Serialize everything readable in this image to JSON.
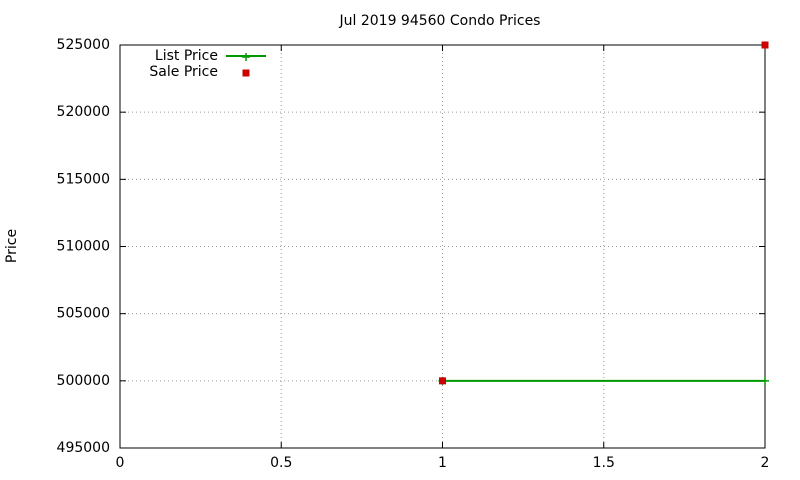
{
  "chart_data": {
    "type": "line",
    "title": "Jul 2019 94560 Condo Prices",
    "y_label": "Price",
    "x": [
      1,
      2
    ],
    "series": [
      {
        "name": "List Price",
        "color": "#009900",
        "mode": "lines+markers",
        "marker": "plus",
        "values": [
          500000,
          500000
        ]
      },
      {
        "name": "Sale Price",
        "color": "#cc0000",
        "mode": "markers",
        "marker": "square",
        "values": [
          500000,
          525000
        ]
      }
    ],
    "xlim": [
      0,
      2
    ],
    "xticks": [
      0,
      0.5,
      1,
      1.5,
      2
    ],
    "ylim": [
      495000,
      525000
    ],
    "yticks": [
      495000,
      500000,
      505000,
      510000,
      515000,
      520000,
      525000
    ],
    "grid": true,
    "legend": "top-left"
  }
}
